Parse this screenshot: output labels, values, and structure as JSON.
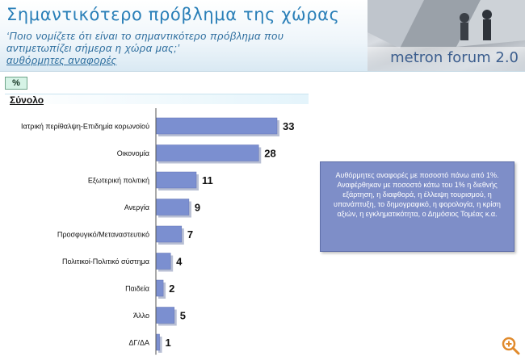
{
  "header": {
    "title": "Σημαντικότερο πρόβλημα της χώρας",
    "question": "‘Ποιο νομίζετε ότι είναι το σημαντικότερο πρόβλημα που αντιμετωπίζει σήμερα η χώρα μας;’",
    "subtitle": "αυθόρμητες αναφορές",
    "brand": "metron forum 2.0"
  },
  "controls": {
    "percent_label": "%"
  },
  "panel": {
    "total_label": "Σύνολο"
  },
  "note": "Αυθόρμητες αναφορές με ποσοστό πάνω από 1%. Αναφέρθηκαν με ποσοστό κάτω του 1% η διεθνής εξάρτηση, η διαφθορά, η έλλειψη τουρισμού, η υπανάπτυξη, το δημογραφικό, η φορολογία, η κρίση αξιών, η εγκληματικότητα, ο Δημόσιος Τομέας κ.α.",
  "chart_data": {
    "type": "bar",
    "orientation": "horizontal",
    "categories": [
      "Ιατρική περίθαλψη-Επιδημία κορωνοϊού",
      "Οικονομία",
      "Εξωτερική πολιτική",
      "Ανεργία",
      "Προσφυγικό/Μεταναστευτικό",
      "Πολιτικοί-Πολιτικό σύστημα",
      "Παιδεία",
      "Άλλο",
      "ΔΓ/ΔΑ"
    ],
    "values": [
      33,
      28,
      11,
      9,
      7,
      4,
      2,
      5,
      1
    ],
    "xlim": [
      0,
      33
    ],
    "grid": false,
    "legend": "none",
    "bar_color": "#7b8fd0"
  }
}
